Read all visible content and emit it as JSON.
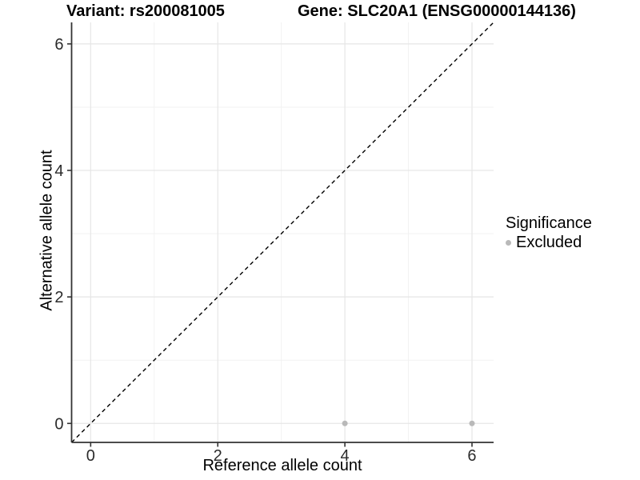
{
  "chart_data": {
    "type": "scatter",
    "title_left": "Variant: rs200081005",
    "title_right": "Gene: SLC20A1 (ENSG00000144136)",
    "xlabel": "Reference allele count",
    "ylabel": "Alternative allele count",
    "xlim": [
      -0.3,
      6.34
    ],
    "ylim": [
      -0.3,
      6.34
    ],
    "x_ticks": [
      0,
      2,
      4,
      6
    ],
    "y_ticks": [
      0,
      2,
      4,
      6
    ],
    "x_minor_ticks": [
      1,
      3,
      5
    ],
    "y_minor_ticks": [
      1,
      3,
      5
    ],
    "grid": true,
    "points": [
      {
        "x": 4,
        "y": 0,
        "significance": "Excluded"
      },
      {
        "x": 6,
        "y": 0,
        "significance": "Excluded"
      }
    ],
    "point_color": "#b9b9b9",
    "identity_line": {
      "style": "dashed",
      "color": "#000000",
      "from": -0.3,
      "to": 6.34
    },
    "legend": {
      "title": "Significance",
      "position": "right",
      "entries": [
        {
          "label": "Excluded",
          "color": "#b9b9b9"
        }
      ]
    },
    "colors": {
      "background": "#ffffff",
      "axis_line": "#333333",
      "tick_text": "#2b2b2b",
      "grid_major": "#e6e6e6",
      "grid_minor": "#f2f2f2"
    }
  }
}
